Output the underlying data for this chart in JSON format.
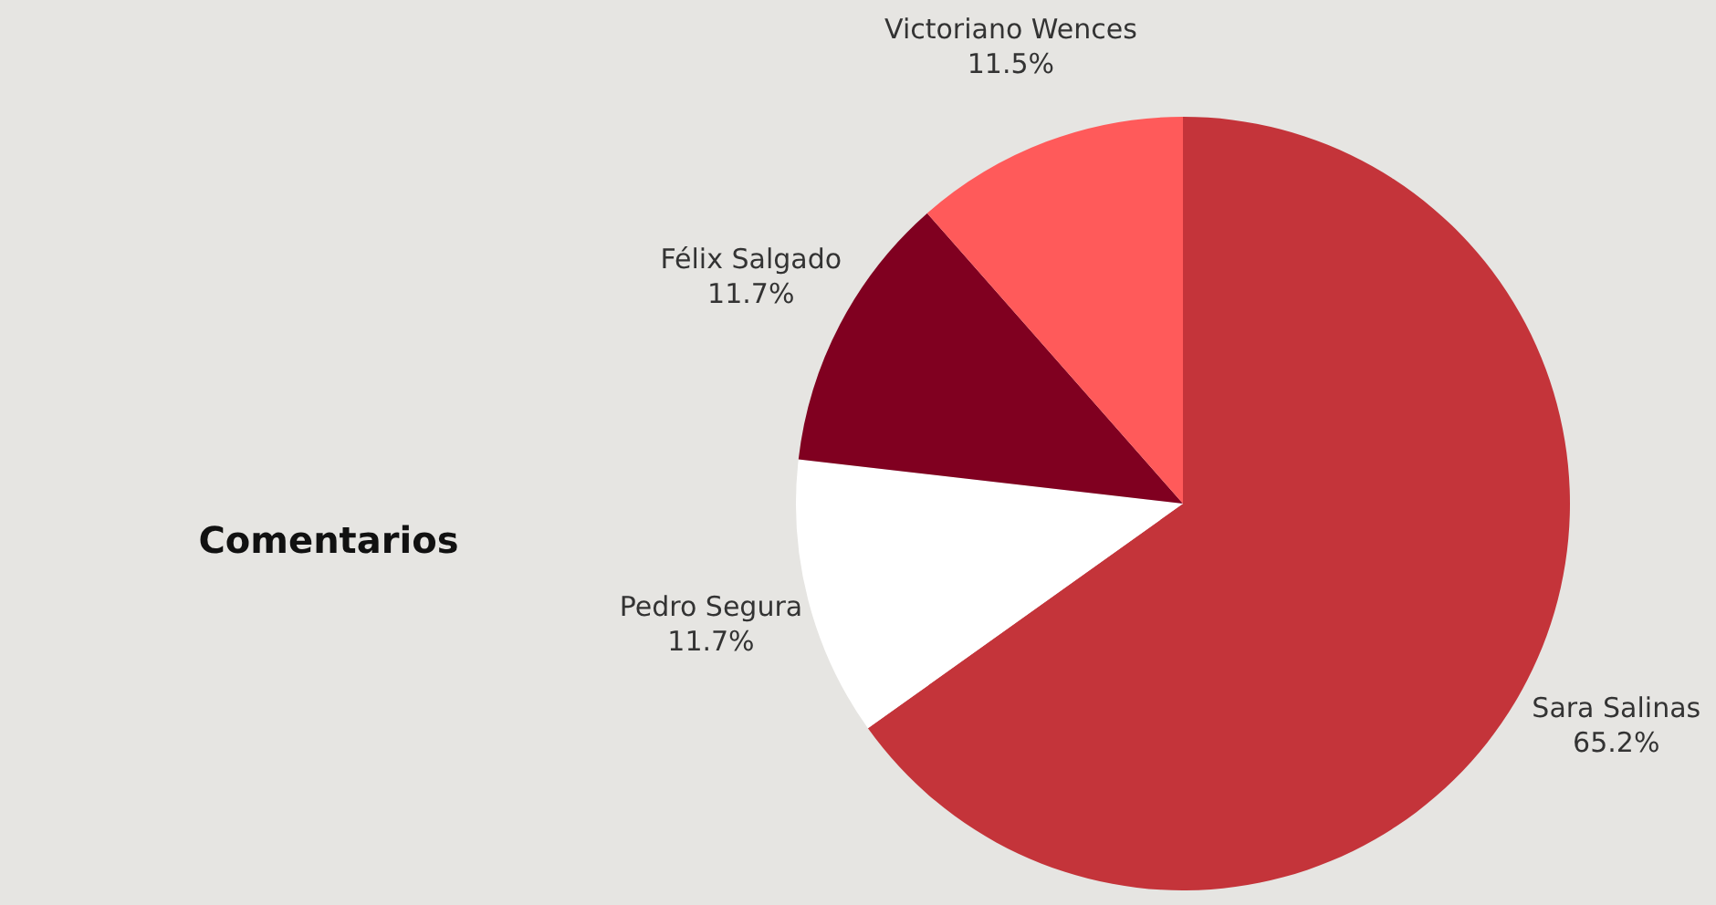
{
  "chart_data": {
    "type": "pie",
    "title": "Comentarios",
    "categories": [
      "Sara Salinas",
      "Pedro Segura",
      "Félix Salgado",
      "Victoriano Wences"
    ],
    "values": [
      65.2,
      11.7,
      11.7,
      11.5
    ],
    "colors": [
      "#c4343a",
      "#ffffff",
      "#800020",
      "#ff5a5a"
    ],
    "value_labels": [
      "65.2%",
      "11.7%",
      "11.7%",
      "11.5%"
    ],
    "legend": false
  }
}
